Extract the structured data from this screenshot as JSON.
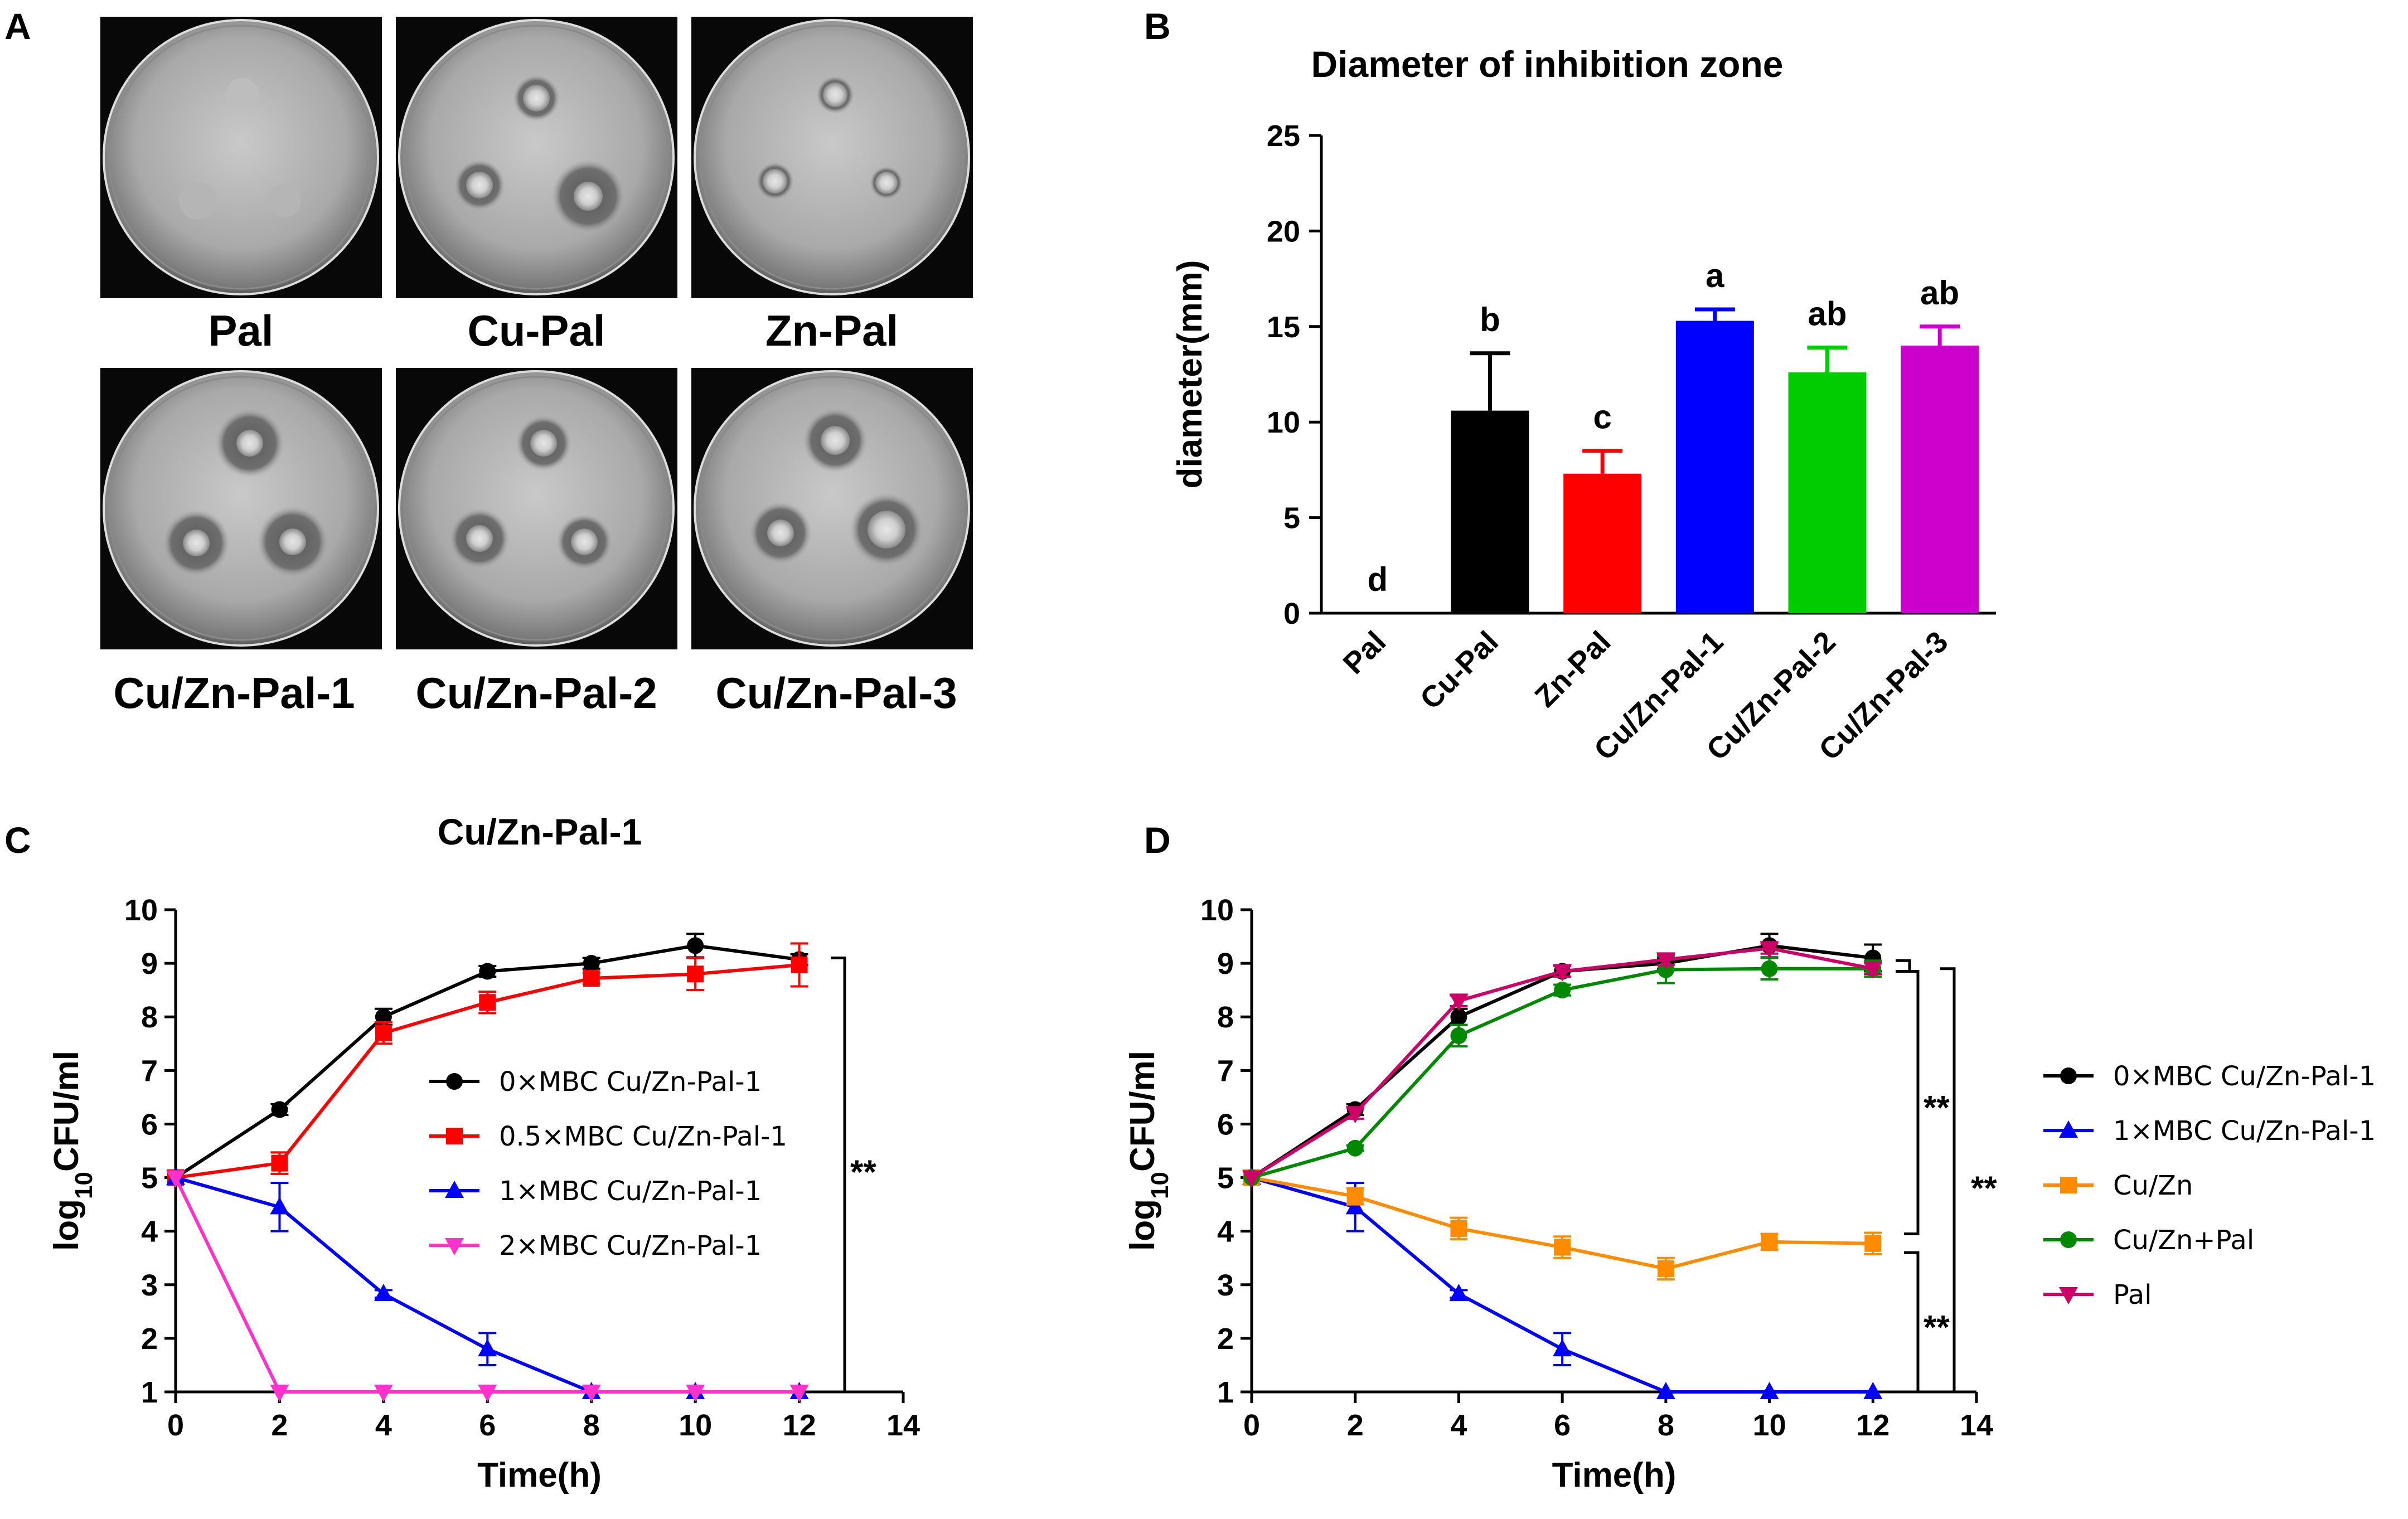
{
  "panels": {
    "A": {
      "letter": "A",
      "plates": [
        "Pal",
        "Cu-Pal",
        "Zn-Pal",
        "Cu/Zn-Pal-1",
        "Cu/Zn-Pal-2",
        "Cu/Zn-Pal-3"
      ]
    },
    "B": {
      "letter": "B"
    },
    "C": {
      "letter": "C"
    },
    "D": {
      "letter": "D"
    }
  },
  "chart_data": [
    {
      "id": "B",
      "type": "bar",
      "title": "Diameter of inhibition zone",
      "xlabel": "",
      "ylabel": "diameter(mm)",
      "ylim": [
        0,
        25
      ],
      "yticks": [
        "0",
        "5",
        "10",
        "15",
        "20",
        "25"
      ],
      "categories": [
        "Pal",
        "Cu-Pal",
        "Zn-Pal",
        "Cu/Zn-Pal-1",
        "Cu/Zn-Pal-2",
        "Cu/Zn-Pal-3"
      ],
      "values": [
        0,
        10.6,
        7.3,
        15.3,
        12.6,
        14.0
      ],
      "errors": [
        0,
        3.0,
        1.2,
        0.6,
        1.3,
        1.0
      ],
      "significance": [
        "d",
        "b",
        "c",
        "a",
        "ab",
        "ab"
      ],
      "colors": [
        "#000000",
        "#000000",
        "#ff0000",
        "#0000ff",
        "#00cc00",
        "#cc00cc"
      ]
    },
    {
      "id": "C",
      "type": "line",
      "title": "Cu/Zn-Pal-1",
      "xlabel": "Time(h)",
      "ylabel": "log10CFU/ml",
      "ylabel_base": "log",
      "ylabel_sub": "10",
      "ylabel_rest": "CFU/ml",
      "xlim": [
        0,
        14
      ],
      "ylim": [
        1,
        10
      ],
      "xticks": [
        "0",
        "2",
        "4",
        "6",
        "8",
        "10",
        "12",
        "14"
      ],
      "yticks": [
        "1",
        "2",
        "3",
        "4",
        "5",
        "6",
        "7",
        "8",
        "9",
        "10"
      ],
      "x": [
        0,
        2,
        4,
        6,
        8,
        10,
        12
      ],
      "series": [
        {
          "name": "0×MBC Cu/Zn-Pal-1",
          "color": "#000000",
          "marker": "circle",
          "values": [
            5,
            6.27,
            8.0,
            8.85,
            9.0,
            9.33,
            9.07
          ],
          "errors": [
            0,
            0.1,
            0.15,
            0.1,
            0.1,
            0.22,
            0.1
          ]
        },
        {
          "name": "0.5×MBC Cu/Zn-Pal-1",
          "color": "#ff0000",
          "marker": "square",
          "values": [
            5,
            5.27,
            7.7,
            8.27,
            8.72,
            8.8,
            8.97
          ],
          "errors": [
            0,
            0.2,
            0.2,
            0.2,
            0.1,
            0.3,
            0.4
          ]
        },
        {
          "name": "1×MBC Cu/Zn-Pal-1",
          "color": "#0000ff",
          "marker": "triangle",
          "values": [
            5,
            4.45,
            2.83,
            1.8,
            1.0,
            1.0,
            1.0
          ],
          "errors": [
            0,
            0.45,
            0.07,
            0.3,
            0,
            0,
            0
          ]
        },
        {
          "name": "2×MBC Cu/Zn-Pal-1",
          "color": "#ff33cc",
          "marker": "triangle-down",
          "values": [
            5,
            1.0,
            1.0,
            1.0,
            1.0,
            1.0,
            1.0
          ],
          "errors": [
            0,
            0,
            0,
            0,
            0,
            0,
            0
          ]
        }
      ],
      "annotation": "**"
    },
    {
      "id": "D",
      "type": "line",
      "title": "",
      "xlabel": "Time(h)",
      "ylabel": "log10CFU/ml",
      "ylabel_base": "log",
      "ylabel_sub": "10",
      "ylabel_rest": "CFU/ml",
      "xlim": [
        0,
        14
      ],
      "ylim": [
        1,
        10
      ],
      "xticks": [
        "0",
        "2",
        "4",
        "6",
        "8",
        "10",
        "12",
        "14"
      ],
      "yticks": [
        "1",
        "2",
        "3",
        "4",
        "5",
        "6",
        "7",
        "8",
        "9",
        "10"
      ],
      "x": [
        0,
        2,
        4,
        6,
        8,
        10,
        12
      ],
      "series": [
        {
          "name": "0×MBC Cu/Zn-Pal-1",
          "color": "#000000",
          "marker": "circle",
          "values": [
            5,
            6.27,
            8.0,
            8.85,
            9.0,
            9.33,
            9.1
          ],
          "errors": [
            0,
            0.1,
            0.15,
            0.1,
            0.1,
            0.22,
            0.25
          ]
        },
        {
          "name": "1×MBC Cu/Zn-Pal-1",
          "color": "#0000ff",
          "marker": "triangle",
          "values": [
            5,
            4.45,
            2.83,
            1.8,
            1.0,
            1.0,
            1.0
          ],
          "errors": [
            0,
            0.45,
            0.07,
            0.3,
            0,
            0,
            0
          ]
        },
        {
          "name": "Cu/Zn",
          "color": "#ff8c00",
          "marker": "square",
          "values": [
            5,
            4.65,
            4.05,
            3.7,
            3.3,
            3.8,
            3.77
          ],
          "errors": [
            0,
            0.15,
            0.2,
            0.2,
            0.2,
            0.15,
            0.2
          ]
        },
        {
          "name": "Cu/Zn+Pal",
          "color": "#008800",
          "marker": "circle",
          "values": [
            5,
            5.55,
            7.65,
            8.5,
            8.88,
            8.9,
            8.9
          ],
          "errors": [
            0,
            0.05,
            0.2,
            0.1,
            0.25,
            0.2,
            0.15
          ]
        },
        {
          "name": "Pal",
          "color": "#cc0066",
          "marker": "triangle-down",
          "values": [
            5,
            6.2,
            8.3,
            8.85,
            9.07,
            9.28,
            8.9
          ],
          "errors": [
            0,
            0.1,
            0.1,
            0.1,
            0.1,
            0.1,
            0.1
          ]
        }
      ],
      "annotations": [
        "**",
        "**",
        "**"
      ]
    }
  ]
}
